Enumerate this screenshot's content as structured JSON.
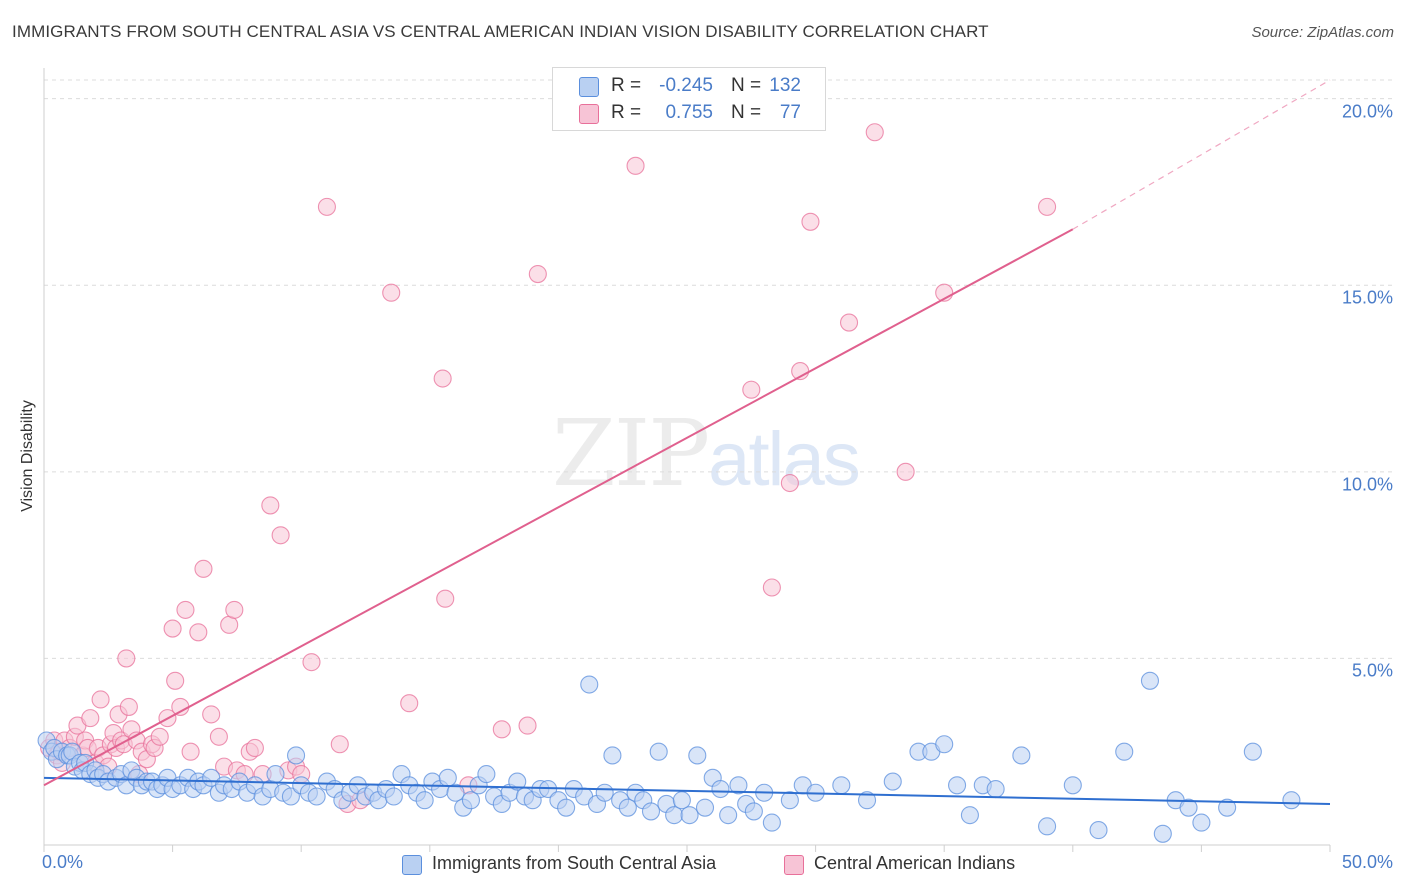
{
  "title": "IMMIGRANTS FROM SOUTH CENTRAL ASIA VS CENTRAL AMERICAN INDIAN VISION DISABILITY CORRELATION CHART",
  "source": "Source: ZipAtlas.com",
  "watermark": {
    "zip": "ZIP",
    "atlas": "atlas"
  },
  "stats": {
    "blue": {
      "r_label": "R =",
      "r": "-0.245",
      "n_label": "N =",
      "n": "132"
    },
    "pink": {
      "r_label": "R =",
      "r": "0.755",
      "n_label": "N =",
      "n": "77"
    }
  },
  "colors": {
    "blue": "#5b8fdd",
    "blue_fill": "#b9d0f2",
    "pink": "#e8709a",
    "pink_fill": "#f7c4d6",
    "tick_label": "#4a7cc8"
  },
  "chart_data": {
    "type": "scatter",
    "title": "IMMIGRANTS FROM SOUTH CENTRAL ASIA VS CENTRAL AMERICAN INDIAN VISION DISABILITY CORRELATION CHART",
    "xlabel": "",
    "ylabel": "Vision Disability",
    "xlim": [
      0,
      50
    ],
    "ylim": [
      0,
      20.5
    ],
    "x_ticks": [
      "0.0%",
      "50.0%"
    ],
    "y_ticks": [
      {
        "value": 5,
        "label": "5.0%"
      },
      {
        "value": 10,
        "label": "10.0%"
      },
      {
        "value": 15,
        "label": "15.0%"
      },
      {
        "value": 20,
        "label": "20.0%"
      }
    ],
    "grid": "horizontal dashed",
    "legend_position": "bottom",
    "series": [
      {
        "name": "Immigrants from South Central Asia",
        "color": "#5b8fdd",
        "trend": {
          "x0": 0,
          "y0": 1.8,
          "x1": 50,
          "y1": 1.1
        },
        "points": [
          [
            0.1,
            2.8
          ],
          [
            0.3,
            2.5
          ],
          [
            0.4,
            2.6
          ],
          [
            0.5,
            2.3
          ],
          [
            0.7,
            2.5
          ],
          [
            0.9,
            2.4
          ],
          [
            1.0,
            2.4
          ],
          [
            1.1,
            2.5
          ],
          [
            1.2,
            2.1
          ],
          [
            1.4,
            2.2
          ],
          [
            1.5,
            2.0
          ],
          [
            1.6,
            2.2
          ],
          [
            1.8,
            1.9
          ],
          [
            2.0,
            2.0
          ],
          [
            2.1,
            1.8
          ],
          [
            2.3,
            1.9
          ],
          [
            2.5,
            1.7
          ],
          [
            2.8,
            1.8
          ],
          [
            3.0,
            1.9
          ],
          [
            3.2,
            1.6
          ],
          [
            3.4,
            2.0
          ],
          [
            3.6,
            1.8
          ],
          [
            3.8,
            1.6
          ],
          [
            4.0,
            1.7
          ],
          [
            4.2,
            1.7
          ],
          [
            4.4,
            1.5
          ],
          [
            4.6,
            1.6
          ],
          [
            4.8,
            1.8
          ],
          [
            5.0,
            1.5
          ],
          [
            5.3,
            1.6
          ],
          [
            5.6,
            1.8
          ],
          [
            5.8,
            1.5
          ],
          [
            6.0,
            1.7
          ],
          [
            6.2,
            1.6
          ],
          [
            6.5,
            1.8
          ],
          [
            6.8,
            1.4
          ],
          [
            7.0,
            1.6
          ],
          [
            7.3,
            1.5
          ],
          [
            7.6,
            1.7
          ],
          [
            7.9,
            1.4
          ],
          [
            8.2,
            1.6
          ],
          [
            8.5,
            1.3
          ],
          [
            8.8,
            1.5
          ],
          [
            9.0,
            1.9
          ],
          [
            9.3,
            1.4
          ],
          [
            9.6,
            1.3
          ],
          [
            9.8,
            2.4
          ],
          [
            10.0,
            1.6
          ],
          [
            10.3,
            1.4
          ],
          [
            10.6,
            1.3
          ],
          [
            11.0,
            1.7
          ],
          [
            11.3,
            1.5
          ],
          [
            11.6,
            1.2
          ],
          [
            11.9,
            1.4
          ],
          [
            12.2,
            1.6
          ],
          [
            12.5,
            1.3
          ],
          [
            12.8,
            1.4
          ],
          [
            13.0,
            1.2
          ],
          [
            13.3,
            1.5
          ],
          [
            13.6,
            1.3
          ],
          [
            13.9,
            1.9
          ],
          [
            14.2,
            1.6
          ],
          [
            14.5,
            1.4
          ],
          [
            14.8,
            1.2
          ],
          [
            15.1,
            1.7
          ],
          [
            15.4,
            1.5
          ],
          [
            15.7,
            1.8
          ],
          [
            16.0,
            1.4
          ],
          [
            16.3,
            1.0
          ],
          [
            16.6,
            1.2
          ],
          [
            16.9,
            1.6
          ],
          [
            17.2,
            1.9
          ],
          [
            17.5,
            1.3
          ],
          [
            17.8,
            1.1
          ],
          [
            18.1,
            1.4
          ],
          [
            18.4,
            1.7
          ],
          [
            18.7,
            1.3
          ],
          [
            19.0,
            1.2
          ],
          [
            19.3,
            1.5
          ],
          [
            19.6,
            1.5
          ],
          [
            20.0,
            1.2
          ],
          [
            20.3,
            1.0
          ],
          [
            20.6,
            1.5
          ],
          [
            21.0,
            1.3
          ],
          [
            21.2,
            4.3
          ],
          [
            21.5,
            1.1
          ],
          [
            21.8,
            1.4
          ],
          [
            22.1,
            2.4
          ],
          [
            22.4,
            1.2
          ],
          [
            22.7,
            1.0
          ],
          [
            23.0,
            1.4
          ],
          [
            23.3,
            1.2
          ],
          [
            23.6,
            0.9
          ],
          [
            23.9,
            2.5
          ],
          [
            24.2,
            1.1
          ],
          [
            24.5,
            0.8
          ],
          [
            24.8,
            1.2
          ],
          [
            25.1,
            0.8
          ],
          [
            25.4,
            2.4
          ],
          [
            25.7,
            1.0
          ],
          [
            26.0,
            1.8
          ],
          [
            26.3,
            1.5
          ],
          [
            26.6,
            0.8
          ],
          [
            27.0,
            1.6
          ],
          [
            27.3,
            1.1
          ],
          [
            27.6,
            0.9
          ],
          [
            28.0,
            1.4
          ],
          [
            28.3,
            0.6
          ],
          [
            29.0,
            1.2
          ],
          [
            29.5,
            1.6
          ],
          [
            30.0,
            1.4
          ],
          [
            31.0,
            1.6
          ],
          [
            32.0,
            1.2
          ],
          [
            33.0,
            1.7
          ],
          [
            34.0,
            2.5
          ],
          [
            34.5,
            2.5
          ],
          [
            35.0,
            2.7
          ],
          [
            35.5,
            1.6
          ],
          [
            36.0,
            0.8
          ],
          [
            36.5,
            1.6
          ],
          [
            37.0,
            1.5
          ],
          [
            38.0,
            2.4
          ],
          [
            39.0,
            0.5
          ],
          [
            40.0,
            1.6
          ],
          [
            41.0,
            0.4
          ],
          [
            42.0,
            2.5
          ],
          [
            43.0,
            4.4
          ],
          [
            43.5,
            0.3
          ],
          [
            44.0,
            1.2
          ],
          [
            44.5,
            1.0
          ],
          [
            45.0,
            0.6
          ],
          [
            46.0,
            1.0
          ],
          [
            47.0,
            2.5
          ],
          [
            48.5,
            1.2
          ]
        ]
      },
      {
        "name": "Central American Indians",
        "color": "#e8709a",
        "trend": {
          "x0": 0,
          "y0": 1.6,
          "x1": 40,
          "y1": 16.5,
          "dash_to_x": 50,
          "dash_to_y": 20.5
        },
        "points": [
          [
            0.2,
            2.6
          ],
          [
            0.4,
            2.8
          ],
          [
            0.5,
            2.4
          ],
          [
            0.6,
            2.5
          ],
          [
            0.7,
            2.2
          ],
          [
            0.8,
            2.8
          ],
          [
            1.0,
            2.6
          ],
          [
            1.2,
            2.9
          ],
          [
            1.3,
            3.2
          ],
          [
            1.5,
            2.4
          ],
          [
            1.6,
            2.8
          ],
          [
            1.7,
            2.6
          ],
          [
            1.8,
            3.4
          ],
          [
            2.0,
            2.2
          ],
          [
            2.1,
            2.6
          ],
          [
            2.2,
            3.9
          ],
          [
            2.3,
            2.4
          ],
          [
            2.5,
            2.1
          ],
          [
            2.6,
            2.7
          ],
          [
            2.7,
            3.0
          ],
          [
            2.8,
            2.6
          ],
          [
            2.9,
            3.5
          ],
          [
            3.0,
            2.8
          ],
          [
            3.1,
            2.7
          ],
          [
            3.2,
            5.0
          ],
          [
            3.3,
            3.7
          ],
          [
            3.4,
            3.1
          ],
          [
            3.6,
            2.8
          ],
          [
            3.7,
            1.9
          ],
          [
            3.8,
            2.5
          ],
          [
            4.0,
            2.3
          ],
          [
            4.2,
            2.7
          ],
          [
            4.3,
            2.6
          ],
          [
            4.5,
            2.9
          ],
          [
            4.8,
            3.4
          ],
          [
            5.0,
            5.8
          ],
          [
            5.1,
            4.4
          ],
          [
            5.3,
            3.7
          ],
          [
            5.5,
            6.3
          ],
          [
            5.7,
            2.5
          ],
          [
            6.0,
            5.7
          ],
          [
            6.2,
            7.4
          ],
          [
            6.5,
            3.5
          ],
          [
            6.8,
            2.9
          ],
          [
            7.0,
            2.1
          ],
          [
            7.2,
            5.9
          ],
          [
            7.4,
            6.3
          ],
          [
            7.5,
            2.0
          ],
          [
            7.8,
            1.9
          ],
          [
            8.0,
            2.5
          ],
          [
            8.2,
            2.6
          ],
          [
            8.5,
            1.9
          ],
          [
            8.8,
            9.1
          ],
          [
            9.2,
            8.3
          ],
          [
            9.5,
            2.0
          ],
          [
            9.8,
            2.1
          ],
          [
            10.0,
            1.9
          ],
          [
            10.4,
            4.9
          ],
          [
            11.0,
            17.1
          ],
          [
            11.5,
            2.7
          ],
          [
            11.8,
            1.1
          ],
          [
            12.3,
            1.2
          ],
          [
            13.5,
            14.8
          ],
          [
            14.2,
            3.8
          ],
          [
            15.5,
            12.5
          ],
          [
            15.6,
            6.6
          ],
          [
            16.5,
            1.6
          ],
          [
            17.8,
            3.1
          ],
          [
            18.8,
            3.2
          ],
          [
            19.2,
            15.3
          ],
          [
            23.0,
            18.2
          ],
          [
            27.5,
            12.2
          ],
          [
            28.3,
            6.9
          ],
          [
            29.0,
            9.7
          ],
          [
            29.4,
            12.7
          ],
          [
            29.8,
            16.7
          ],
          [
            31.3,
            14.0
          ],
          [
            32.3,
            19.1
          ],
          [
            33.5,
            10.0
          ],
          [
            35.0,
            14.8
          ],
          [
            39.0,
            17.1
          ]
        ]
      }
    ]
  },
  "legend": {
    "blue_label": "Immigrants from South Central Asia",
    "pink_label": "Central American Indians"
  }
}
